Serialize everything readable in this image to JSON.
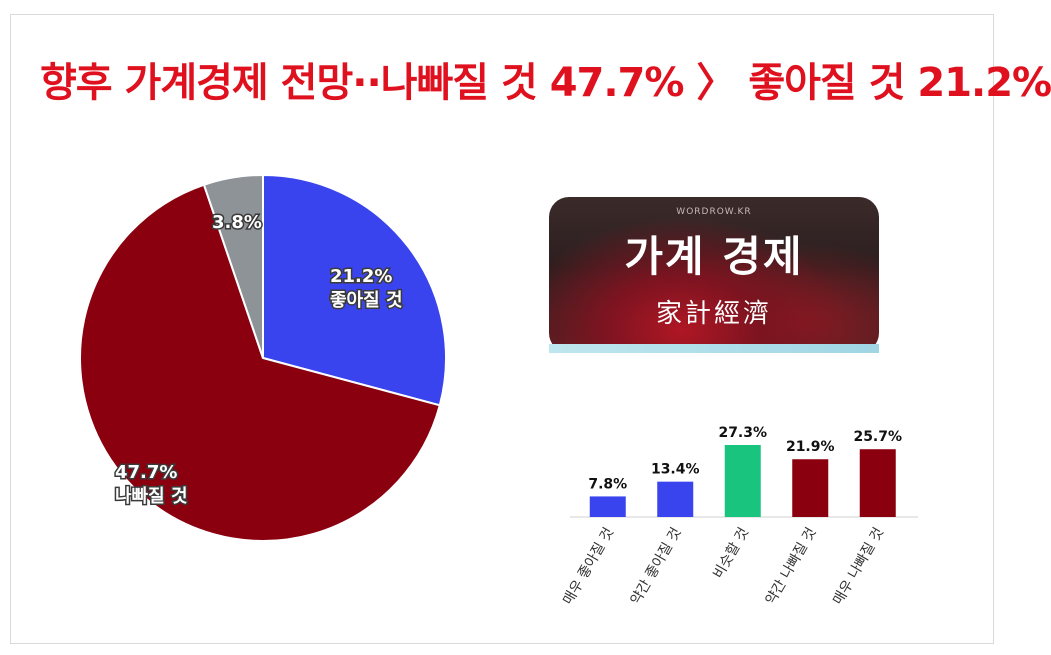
{
  "title": "향후 가계경제 전망··나빠질 것 47.7% 〉 좋아질 것 21.2%",
  "banner": {
    "brand": "WORDROW.KR",
    "title": "가계 경제",
    "subtitle": "家計經濟"
  },
  "chart_data": [
    {
      "type": "pie",
      "slices": [
        {
          "label": "좋아질 것",
          "value": 21.2,
          "value_label": "21.2%",
          "color": "#3a44ee"
        },
        {
          "label": "나빠질 것",
          "value": 47.7,
          "value_label": "47.7%",
          "color": "#8b000f"
        },
        {
          "label": "",
          "value": 3.8,
          "value_label": "3.8%",
          "color": "#8e9398"
        }
      ]
    },
    {
      "type": "bar",
      "categories": [
        "매우 좋아질 것",
        "약간 좋아질 것",
        "비슷할 것",
        "약간 나빠질 것",
        "매우 나빠질 것"
      ],
      "values": [
        7.8,
        13.4,
        27.3,
        21.9,
        25.7
      ],
      "value_labels": [
        "7.8%",
        "13.4%",
        "27.3%",
        "21.9%",
        "25.7%"
      ],
      "colors": [
        "#3a44ee",
        "#3a44ee",
        "#19c47f",
        "#8b000f",
        "#8b000f"
      ],
      "ylim": [
        0,
        30
      ]
    }
  ]
}
